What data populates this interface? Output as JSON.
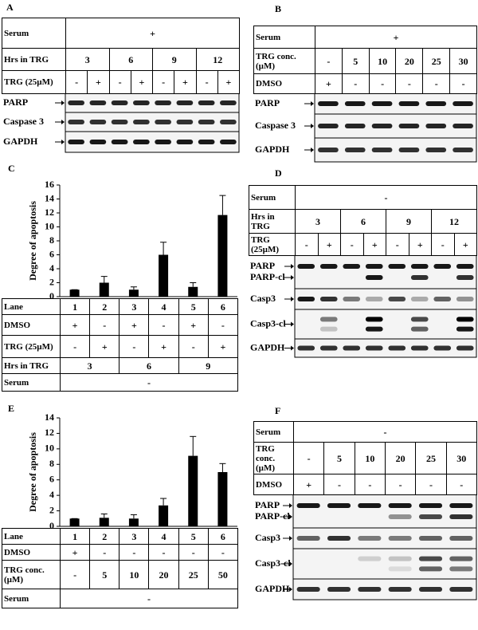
{
  "panels": {
    "A": {
      "label": "A",
      "rows": [
        {
          "label": "Serum",
          "cells": [
            "+"
          ]
        },
        {
          "label": "Hrs in TRG",
          "cells": [
            "3",
            "6",
            "9",
            "12"
          ]
        },
        {
          "label": "TRG (25µM)",
          "cells": [
            "-",
            "+",
            "-",
            "+",
            "-",
            "+",
            "-",
            "+"
          ]
        }
      ],
      "blots": [
        [
          "PARP"
        ],
        [
          "Caspase 3"
        ],
        [
          "GAPDH"
        ]
      ]
    },
    "B": {
      "label": "B",
      "rows": [
        {
          "label": "Serum",
          "cells": [
            "+"
          ]
        },
        {
          "label": "TRG conc. (µM)",
          "cells": [
            "-",
            "5",
            "10",
            "20",
            "25",
            "30"
          ]
        },
        {
          "label": "DMSO",
          "cells": [
            "+",
            "-",
            "-",
            "-",
            "-",
            "-"
          ]
        }
      ],
      "blots": [
        [
          "PARP"
        ],
        [
          "Caspase 3"
        ],
        [
          "GAPDH"
        ]
      ]
    },
    "D": {
      "label": "D",
      "rows": [
        {
          "label": "Serum",
          "cells": [
            "-"
          ]
        },
        {
          "label": "Hrs in TRG",
          "cells": [
            "3",
            "6",
            "9",
            "12"
          ]
        },
        {
          "label": "TRG (25µM)",
          "cells": [
            "-",
            "+",
            "-",
            "+",
            "-",
            "+",
            "-",
            "+"
          ]
        }
      ],
      "blots": [
        [
          "PARP",
          "PARP-cl"
        ],
        [
          "Casp3"
        ],
        [
          "Casp3-cl"
        ],
        [
          "GAPDH"
        ]
      ]
    },
    "F": {
      "label": "F",
      "rows": [
        {
          "label": "Serum",
          "cells": [
            "-"
          ]
        },
        {
          "label": "TRG conc. (µM)",
          "cells": [
            "-",
            "5",
            "10",
            "20",
            "25",
            "30"
          ]
        },
        {
          "label": "DMSO",
          "cells": [
            "+",
            "-",
            "-",
            "-",
            "-",
            "-"
          ]
        }
      ],
      "blots": [
        [
          "PARP",
          "PARP-cl"
        ],
        [
          "Casp3"
        ],
        [
          "Casp3-cl"
        ],
        [
          "GAPDH"
        ]
      ]
    }
  },
  "chart_data": [
    {
      "type": "bar",
      "panel": "C",
      "y_label": "Degree of apoptosis",
      "category_label": "Lane",
      "categories": [
        "1",
        "2",
        "3",
        "4",
        "5",
        "6"
      ],
      "values": [
        1,
        2,
        1,
        6,
        1.4,
        11.7
      ],
      "errors": [
        0,
        0.9,
        0.4,
        1.8,
        0.6,
        2.8
      ],
      "color": "#000000",
      "ylim": [
        0,
        16
      ],
      "yticks": [
        0,
        2,
        4,
        6,
        8,
        10,
        12,
        14,
        16
      ],
      "rows": [
        {
          "label": "DMSO",
          "cells": [
            "+",
            "-",
            "+",
            "-",
            "+",
            "-"
          ]
        },
        {
          "label": "TRG (25µM)",
          "cells": [
            "-",
            "+",
            "-",
            "+",
            "-",
            "+"
          ]
        },
        {
          "label": "Hrs in TRG",
          "cells": [
            "3",
            "6",
            "9"
          ]
        },
        {
          "label": "Serum",
          "cells": [
            "-"
          ]
        }
      ]
    },
    {
      "type": "bar",
      "panel": "E",
      "y_label": "Degree of apoptosis",
      "category_label": "Lane",
      "categories": [
        "1",
        "2",
        "3",
        "4",
        "5",
        "6"
      ],
      "values": [
        1,
        1.1,
        1,
        2.7,
        9.1,
        7
      ],
      "errors": [
        0,
        0.5,
        0.5,
        0.9,
        2.5,
        1.1
      ],
      "color": "#000000",
      "ylim": [
        0,
        14
      ],
      "yticks": [
        0,
        2,
        4,
        6,
        8,
        10,
        12,
        14
      ],
      "rows": [
        {
          "label": "DMSO",
          "cells": [
            "+",
            "-",
            "-",
            "-",
            "-",
            "-"
          ]
        },
        {
          "label": "TRG conc. (µM)",
          "cells": [
            "-",
            "5",
            "10",
            "20",
            "25",
            "50"
          ]
        },
        {
          "label": "Serum",
          "cells": [
            "-"
          ]
        }
      ]
    }
  ]
}
